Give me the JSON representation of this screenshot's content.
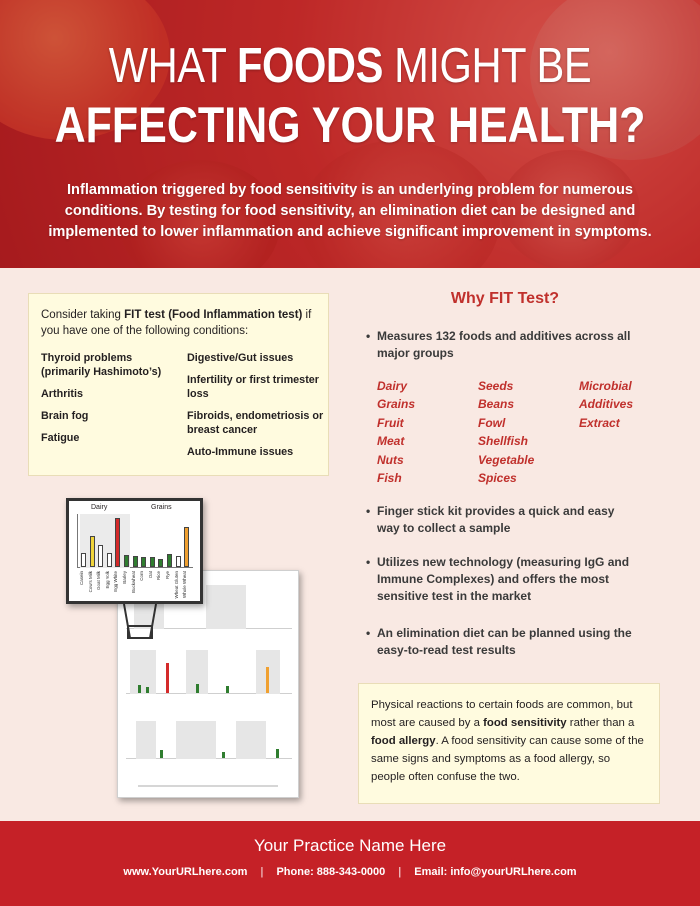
{
  "header": {
    "line1_pre": "WHAT ",
    "line1_bold": "FOODS",
    "line1_post": " MIGHT BE",
    "line2": "AFFECTING YOUR HEALTH?",
    "intro": "Inflammation triggered by food sensitivity is an underlying problem for numerous conditions. By testing for food sensitivity, an elimination diet can be designed and implemented to lower inflammation and achieve significant improvement in symptoms."
  },
  "conditions": {
    "intro_pre": "Consider taking ",
    "intro_bold": "FIT test (Food Inflammation test)",
    "intro_post": " if you have one of the following conditions:",
    "left": [
      "Thyroid problems (primarily Hashimoto’s)",
      "Arthritis",
      "Brain fog",
      "Fatigue"
    ],
    "right": [
      "Digestive/Gut issues",
      "Infertility or first trimester loss",
      "Fibroids, endometriosis or breast cancer",
      "Auto-Immune issues"
    ]
  },
  "illustration": {
    "group1": "Dairy",
    "group2": "Grains",
    "x_labels": [
      "Casein",
      "Cow's Milk",
      "Goat Milk",
      "Egg Yolk",
      "Egg White",
      "Barley",
      "Buckwheat",
      "Corn",
      "Oat",
      "Rice",
      "Rye",
      "Wheat Gluten",
      "Whole Wheat"
    ],
    "values": [
      1.2,
      2.6,
      1.8,
      1.2,
      4.1,
      1.0,
      0.9,
      0.8,
      0.8,
      0.7,
      1.1,
      0.9,
      3.3
    ],
    "colors": [
      "#ffffff",
      "#f0d43a",
      "#ffffff",
      "#ffffff",
      "#d42a2a",
      "#2f7d2f",
      "#2f7d2f",
      "#2f7d2f",
      "#2f7d2f",
      "#2f7d2f",
      "#2f7d2f",
      "#ffffff",
      "#f0a030"
    ]
  },
  "why": {
    "title": "Why FIT Test?",
    "bullet1": "Measures 132 foods and additives across all major groups",
    "categories": [
      [
        "Dairy",
        "Grains",
        "Fruit",
        "Meat",
        "Nuts",
        "Fish"
      ],
      [
        "Seeds",
        "Beans",
        "Fowl",
        "Shellfish",
        "Vegetable",
        "Spices"
      ],
      [
        "Microbial",
        "Additives",
        "Extract"
      ]
    ],
    "bullet2": "Finger stick kit provides a quick and easy way to collect a sample",
    "bullet3": "Utilizes new technology (measuring IgG and Immune Complexes) and offers the most sensitive test in the market",
    "bullet4": "An elimination diet can be planned using the easy-to-read test results"
  },
  "sensitivity": {
    "t1": "Physical reactions to certain foods are common, but most are caused by a ",
    "b1": "food sensitivity",
    "t2": " rather than a ",
    "b2": "food allergy",
    "t3": ". A food sensitivity can cause some of the same signs and symptoms as a food allergy, so people often confuse the two."
  },
  "footer": {
    "practice": "Your Practice Name Here",
    "url": "www.YourURLhere.com",
    "sep": "|",
    "phone": "Phone: 888-343-0000",
    "email": "Email: info@yourURLhere.com"
  },
  "colors": {
    "accent": "#c0302c",
    "footer_bg": "#c52127",
    "page_bg": "#f9e9e3",
    "box_bg": "#fffbdf"
  }
}
